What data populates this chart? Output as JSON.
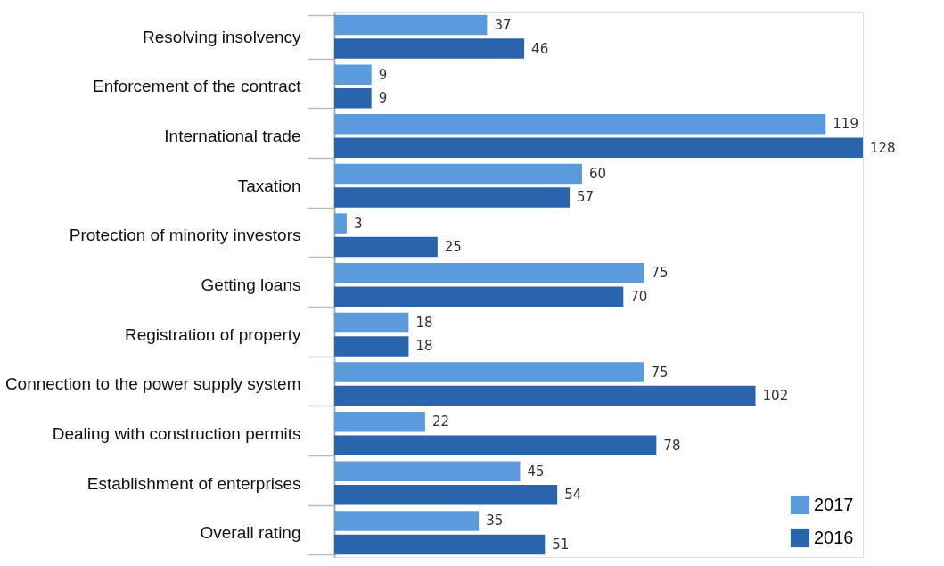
{
  "chart_data": {
    "type": "bar",
    "orientation": "horizontal",
    "data_labels": true,
    "legend": "bottom right",
    "categories": [
      "Resolving insolvency",
      "Enforcement of the contract",
      "International trade",
      "Taxation",
      "Protection of minority investors",
      "Getting loans",
      "Registration of property",
      "Connection to the power supply system",
      "Dealing with construction permits",
      "Establishment of enterprises",
      "Overall rating"
    ],
    "series": [
      {
        "name": "2017",
        "color": "#5b9bdd",
        "values": [
          37,
          9,
          119,
          60,
          3,
          75,
          18,
          75,
          22,
          45,
          35
        ]
      },
      {
        "name": "2016",
        "color": "#2a64ad",
        "values": [
          46,
          9,
          128,
          57,
          25,
          70,
          18,
          102,
          78,
          54,
          51
        ]
      }
    ]
  }
}
